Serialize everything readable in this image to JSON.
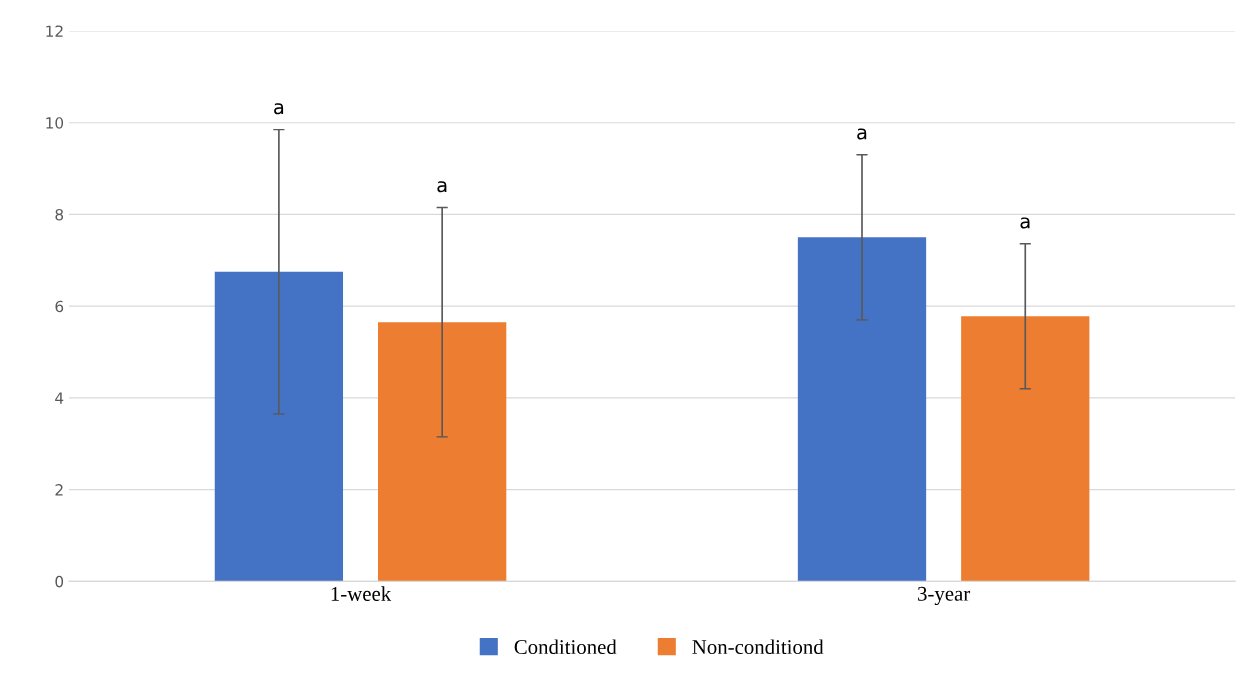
{
  "chart_data": {
    "type": "bar",
    "categories": [
      "1-week",
      "3-year"
    ],
    "series": [
      {
        "name": "Conditioned",
        "color": "#4472c4",
        "values": [
          6.75,
          7.5
        ],
        "errors": [
          3.1,
          1.8
        ]
      },
      {
        "name": "Non-conditiond",
        "color": "#ed7d31",
        "values": [
          5.65,
          5.78
        ],
        "errors": [
          2.5,
          1.58
        ]
      }
    ],
    "annotations": [
      "a",
      "a",
      "a",
      "a"
    ],
    "ylim": [
      0,
      12
    ],
    "yticks": [
      0,
      2,
      4,
      6,
      8,
      10,
      12
    ],
    "grid": "y",
    "legend": "bottom"
  }
}
